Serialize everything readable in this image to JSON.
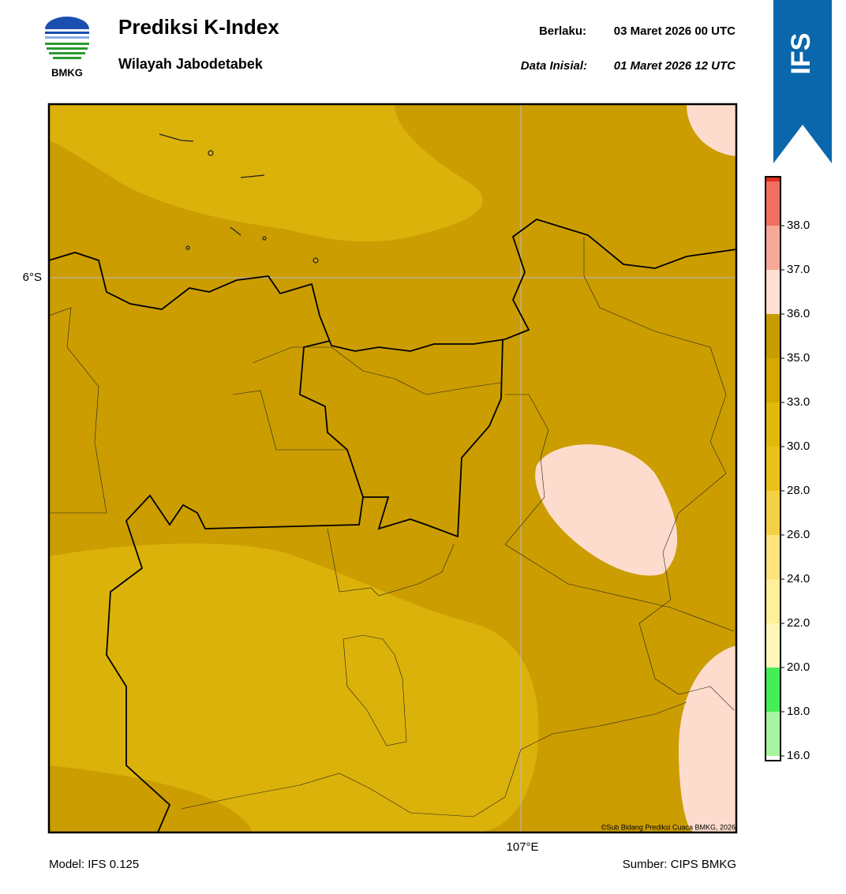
{
  "header": {
    "logo_text": "BMKG",
    "title": "Prediksi K-Index",
    "subtitle": "Wilayah Jabodetabek",
    "valid_label": "Berlaku:",
    "valid_time": "03 Maret 2026 00 UTC",
    "init_label": "Data Inisial:",
    "init_time": "01 Maret 2026 12 UTC",
    "badge": "IFS"
  },
  "map": {
    "lat_label": "6°S",
    "lon_label": "107°E",
    "credit": "©Sub Bidang Prediksi Cuaca BMKG, 2026"
  },
  "colorbar": {
    "ticks": [
      "16.0",
      "18.0",
      "20.0",
      "22.0",
      "24.0",
      "26.0",
      "28.0",
      "30.0",
      "33.0",
      "35.0",
      "36.0",
      "37.0",
      "38.0"
    ],
    "colors": [
      "#ffffff",
      "#a8f5a0",
      "#44ee55",
      "#fff6b8",
      "#ffee9a",
      "#ffe37a",
      "#f5d045",
      "#ecc21a",
      "#e3b80c",
      "#d6a800",
      "#c89c00",
      "#ffe0d2",
      "#f8a898",
      "#f07060",
      "#e03020"
    ]
  },
  "footer": {
    "model": "Model: IFS 0.125",
    "source": "Sumber: CIPS BMKG"
  }
}
